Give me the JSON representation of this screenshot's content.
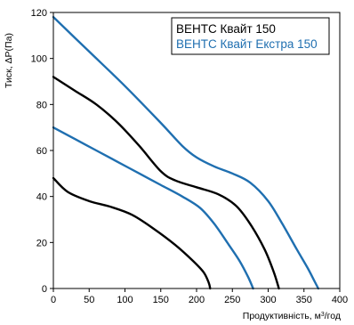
{
  "chart_data": {
    "type": "line",
    "xlabel_main": "Продуктивність, м",
    "xlabel_sup": "3",
    "xlabel_end": "/год",
    "ylabel": "Тиск, ΔP(Па)",
    "xlim": [
      0,
      400
    ],
    "ylim": [
      0,
      120
    ],
    "x_ticks": [
      "0",
      "50",
      "100",
      "150",
      "200",
      "250",
      "300",
      "350",
      "400"
    ],
    "y_ticks": [
      "0",
      "20",
      "40",
      "60",
      "80",
      "100",
      "120"
    ],
    "grid": false,
    "legend_position": "top-right",
    "legend": [
      {
        "label": "ВЕНТС Квайт 150",
        "color": "#000000"
      },
      {
        "label": "ВЕНТС Квайт Екстра 150",
        "color": "#1f6fb0"
      }
    ],
    "series": [
      {
        "group": "ВЕНТС Квайт 150",
        "color": "#000000",
        "points": [
          [
            0,
            48
          ],
          [
            20,
            42
          ],
          [
            50,
            38
          ],
          [
            80,
            35.5
          ],
          [
            110,
            32
          ],
          [
            140,
            26
          ],
          [
            170,
            19
          ],
          [
            195,
            12
          ],
          [
            210,
            7
          ],
          [
            217,
            2.5
          ],
          [
            219,
            0
          ]
        ]
      },
      {
        "group": "ВЕНТС Квайт 150",
        "color": "#000000",
        "points": [
          [
            0,
            92
          ],
          [
            30,
            86
          ],
          [
            60,
            80
          ],
          [
            90,
            72
          ],
          [
            120,
            62
          ],
          [
            150,
            51
          ],
          [
            170,
            47
          ],
          [
            200,
            44
          ],
          [
            230,
            41
          ],
          [
            255,
            36
          ],
          [
            275,
            28
          ],
          [
            295,
            17
          ],
          [
            308,
            7
          ],
          [
            315,
            0
          ]
        ]
      },
      {
        "group": "ВЕНТС Квайт Екстра 150",
        "color": "#1f6fb0",
        "points": [
          [
            0,
            70
          ],
          [
            30,
            65
          ],
          [
            60,
            60
          ],
          [
            90,
            55
          ],
          [
            120,
            50
          ],
          [
            150,
            45
          ],
          [
            180,
            40
          ],
          [
            205,
            35
          ],
          [
            225,
            28
          ],
          [
            245,
            19
          ],
          [
            260,
            12
          ],
          [
            272,
            5
          ],
          [
            279,
            0
          ]
        ]
      },
      {
        "group": "ВЕНТС Квайт Екстра 150",
        "color": "#1f6fb0",
        "points": [
          [
            0,
            118
          ],
          [
            50,
            103
          ],
          [
            100,
            88
          ],
          [
            150,
            72
          ],
          [
            180,
            62
          ],
          [
            200,
            57
          ],
          [
            225,
            53
          ],
          [
            250,
            50
          ],
          [
            275,
            46
          ],
          [
            300,
            38
          ],
          [
            320,
            28
          ],
          [
            340,
            17
          ],
          [
            355,
            9
          ],
          [
            365,
            3
          ],
          [
            370,
            0
          ]
        ]
      }
    ]
  }
}
